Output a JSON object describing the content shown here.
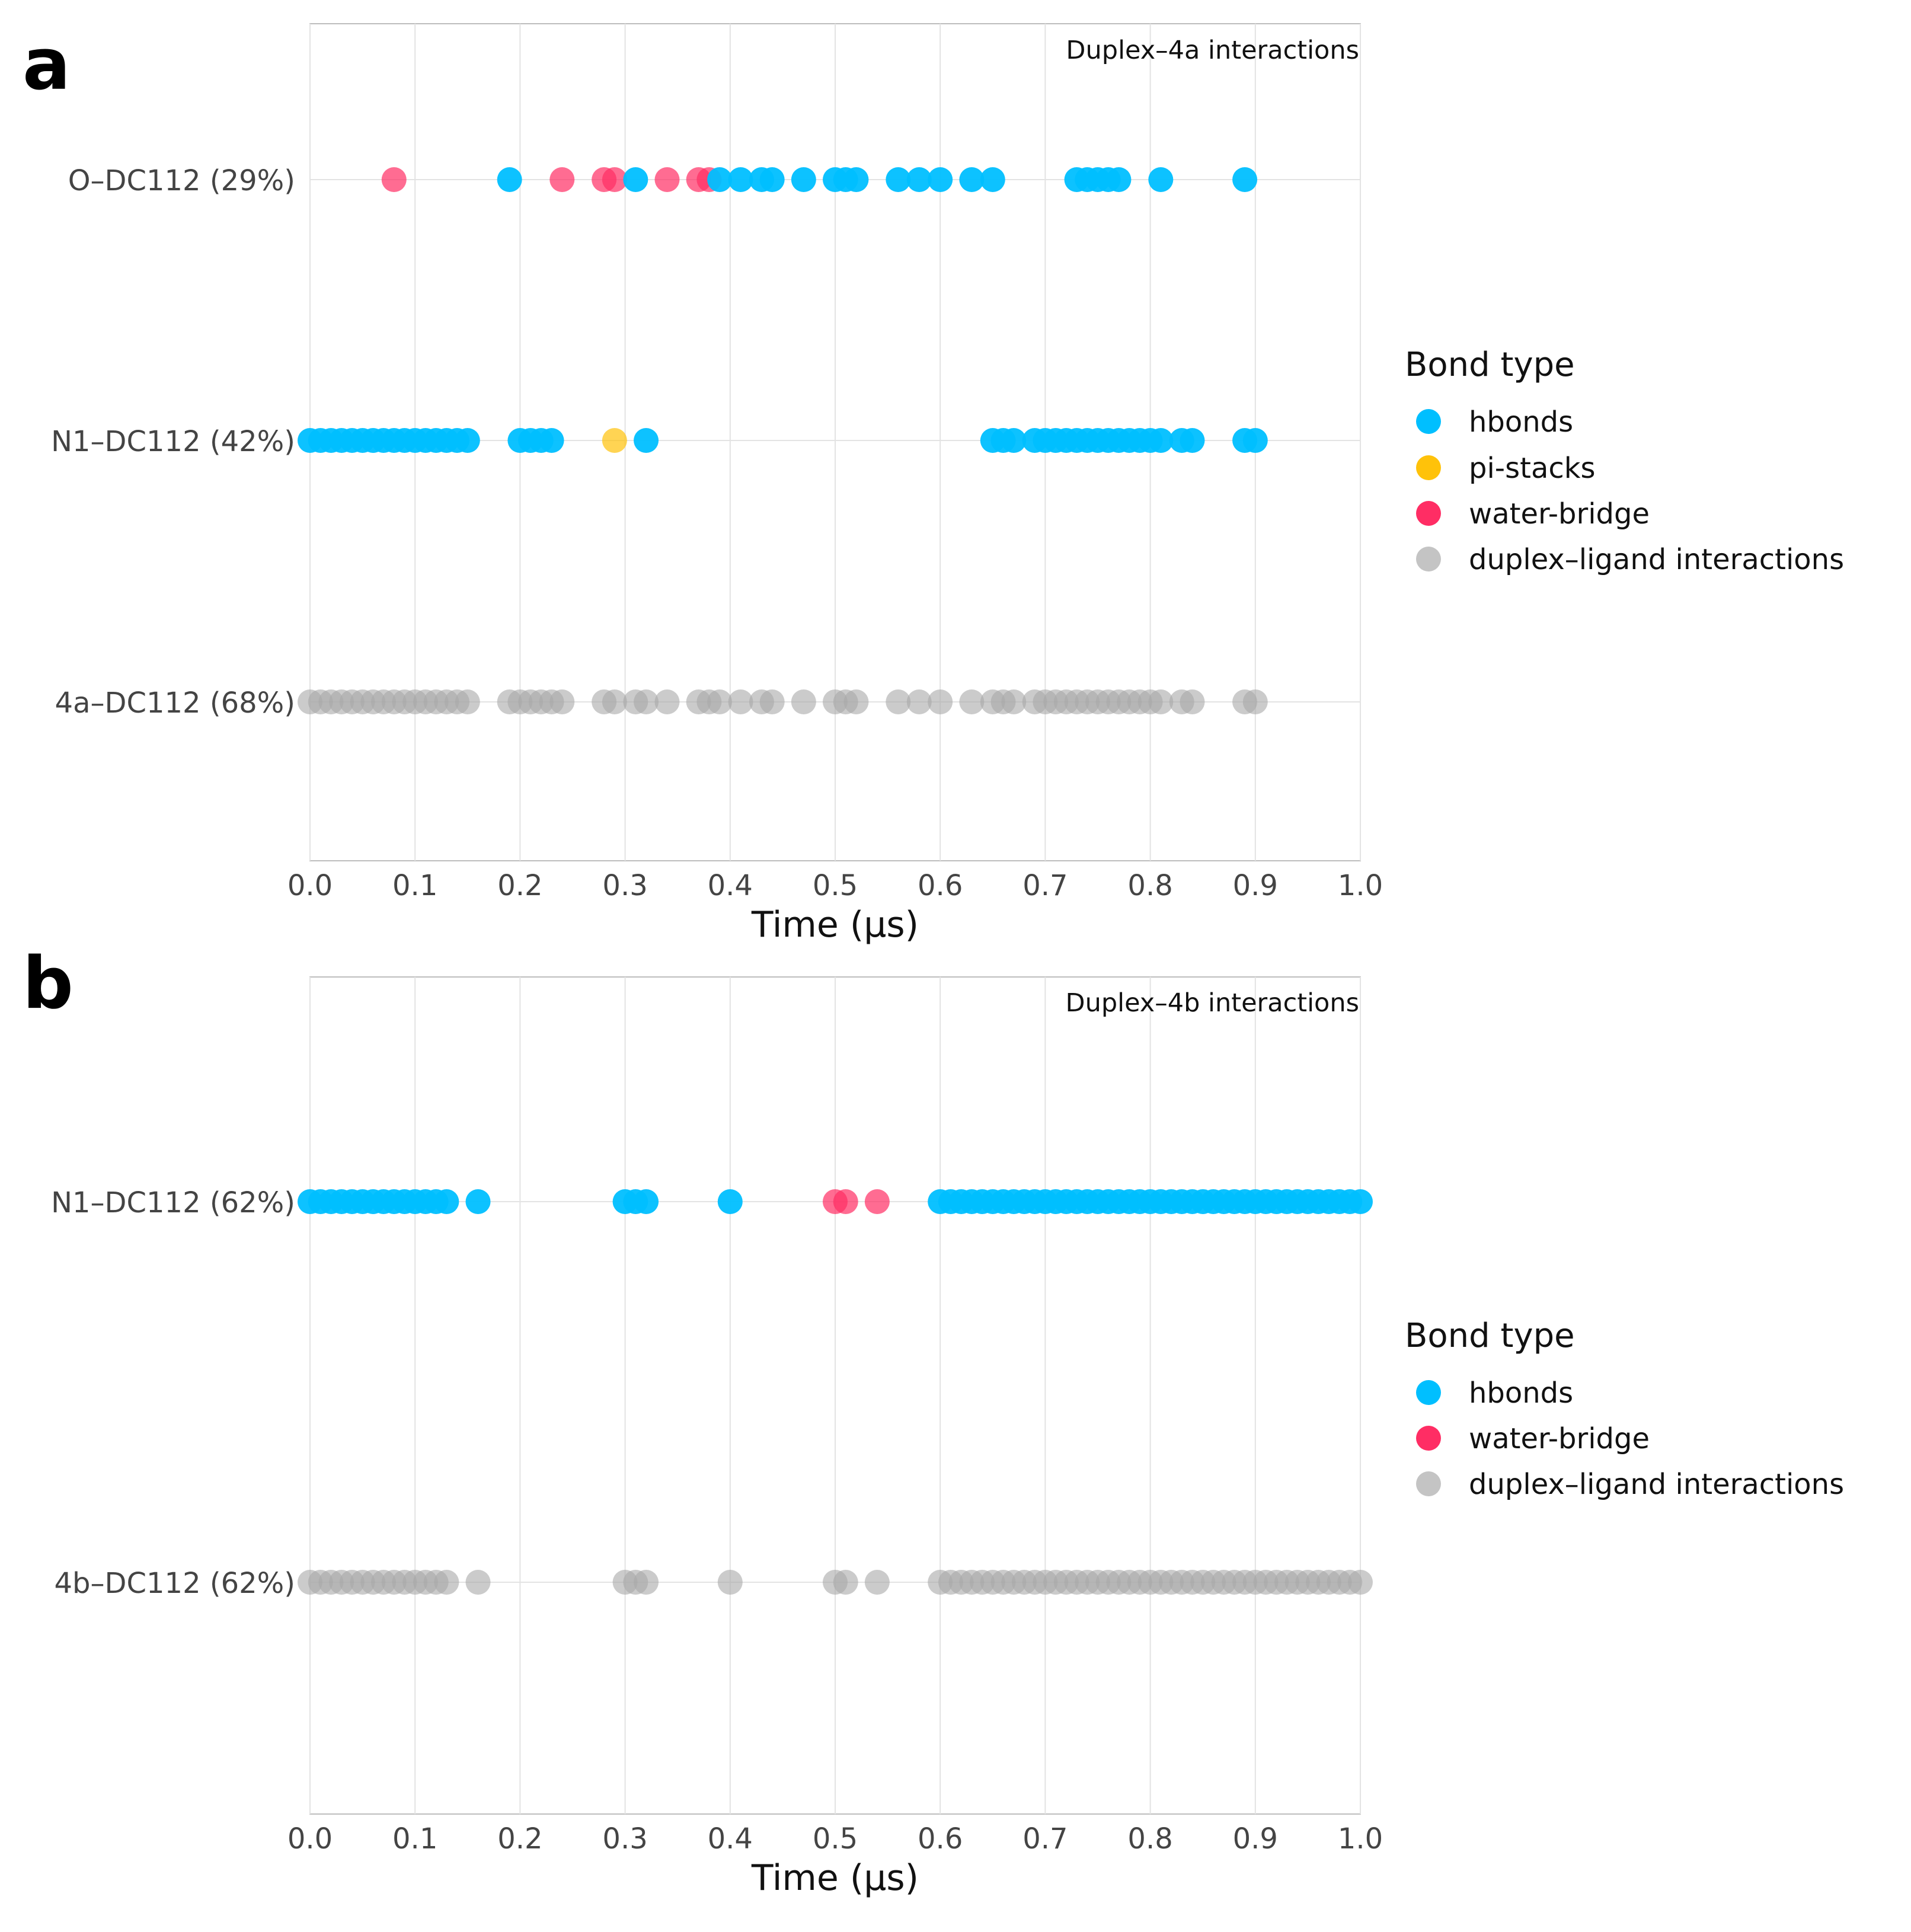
{
  "chart_data": [
    {
      "panel": "a",
      "type": "scatter",
      "title": "Duplex–4a interactions",
      "xlabel": "Time (μs)",
      "xlim": [
        0.0,
        1.0
      ],
      "xticks": [
        "0.0",
        "0.1",
        "0.2",
        "0.3",
        "0.4",
        "0.5",
        "0.6",
        "0.7",
        "0.8",
        "0.9",
        "1.0"
      ],
      "rows": [
        {
          "label": "O–DC112 (29%)",
          "points": {
            "water-bridge": [
              0.08,
              0.24,
              0.28,
              0.29,
              0.34,
              0.37,
              0.38
            ],
            "hbonds": [
              0.19,
              0.31,
              0.39,
              0.41,
              0.43,
              0.44,
              0.47,
              0.5,
              0.51,
              0.52,
              0.56,
              0.58,
              0.6,
              0.63,
              0.65,
              0.73,
              0.74,
              0.75,
              0.76,
              0.77,
              0.81,
              0.89
            ]
          }
        },
        {
          "label": "N1–DC112 (42%)",
          "points": {
            "hbonds": [
              0.0,
              0.01,
              0.02,
              0.03,
              0.04,
              0.05,
              0.06,
              0.07,
              0.08,
              0.09,
              0.1,
              0.11,
              0.12,
              0.13,
              0.14,
              0.15,
              0.2,
              0.21,
              0.22,
              0.23,
              0.32,
              0.65,
              0.66,
              0.67,
              0.69,
              0.7,
              0.71,
              0.72,
              0.73,
              0.74,
              0.75,
              0.76,
              0.77,
              0.78,
              0.79,
              0.8,
              0.81,
              0.83,
              0.84,
              0.89,
              0.9
            ],
            "pi-stacks": [
              0.29
            ]
          }
        },
        {
          "label": "4a–DC112 (68%)",
          "points": {
            "duplex–ligand interactions": [
              0.0,
              0.01,
              0.02,
              0.03,
              0.04,
              0.05,
              0.06,
              0.07,
              0.08,
              0.09,
              0.1,
              0.11,
              0.12,
              0.13,
              0.14,
              0.15,
              0.19,
              0.2,
              0.21,
              0.22,
              0.23,
              0.24,
              0.28,
              0.29,
              0.31,
              0.32,
              0.34,
              0.37,
              0.38,
              0.39,
              0.41,
              0.43,
              0.44,
              0.47,
              0.5,
              0.51,
              0.52,
              0.56,
              0.58,
              0.6,
              0.63,
              0.65,
              0.66,
              0.67,
              0.69,
              0.7,
              0.71,
              0.72,
              0.73,
              0.74,
              0.75,
              0.76,
              0.77,
              0.78,
              0.79,
              0.8,
              0.81,
              0.83,
              0.84,
              0.89,
              0.9
            ]
          }
        }
      ],
      "legend": {
        "title": "Bond type",
        "placement": "right",
        "entries": [
          "hbonds",
          "pi-stacks",
          "water-bridge",
          "duplex–ligand interactions"
        ]
      }
    },
    {
      "panel": "b",
      "type": "scatter",
      "title": "Duplex–4b interactions",
      "xlabel": "Time (μs)",
      "xlim": [
        0.0,
        1.0
      ],
      "xticks": [
        "0.0",
        "0.1",
        "0.2",
        "0.3",
        "0.4",
        "0.5",
        "0.6",
        "0.7",
        "0.8",
        "0.9",
        "1.0"
      ],
      "rows": [
        {
          "label": "N1–DC112 (62%)",
          "points": {
            "hbonds": [
              0.0,
              0.01,
              0.02,
              0.03,
              0.04,
              0.05,
              0.06,
              0.07,
              0.08,
              0.09,
              0.1,
              0.11,
              0.12,
              0.13,
              0.16,
              0.3,
              0.31,
              0.32,
              0.4,
              0.6,
              0.61,
              0.62,
              0.63,
              0.64,
              0.65,
              0.66,
              0.67,
              0.68,
              0.69,
              0.7,
              0.71,
              0.72,
              0.73,
              0.74,
              0.75,
              0.76,
              0.77,
              0.78,
              0.79,
              0.8,
              0.81,
              0.82,
              0.83,
              0.84,
              0.85,
              0.86,
              0.87,
              0.88,
              0.89,
              0.9,
              0.91,
              0.92,
              0.93,
              0.94,
              0.95,
              0.96,
              0.97,
              0.98,
              0.99,
              1.0
            ],
            "water-bridge": [
              0.5,
              0.51,
              0.54
            ]
          }
        },
        {
          "label": "4b–DC112 (62%)",
          "points": {
            "duplex–ligand interactions": [
              0.0,
              0.01,
              0.02,
              0.03,
              0.04,
              0.05,
              0.06,
              0.07,
              0.08,
              0.09,
              0.1,
              0.11,
              0.12,
              0.13,
              0.16,
              0.3,
              0.31,
              0.32,
              0.4,
              0.5,
              0.51,
              0.54,
              0.6,
              0.61,
              0.62,
              0.63,
              0.64,
              0.65,
              0.66,
              0.67,
              0.68,
              0.69,
              0.7,
              0.71,
              0.72,
              0.73,
              0.74,
              0.75,
              0.76,
              0.77,
              0.78,
              0.79,
              0.8,
              0.81,
              0.82,
              0.83,
              0.84,
              0.85,
              0.86,
              0.87,
              0.88,
              0.89,
              0.9,
              0.91,
              0.92,
              0.93,
              0.94,
              0.95,
              0.96,
              0.97,
              0.98,
              0.99,
              1.0
            ]
          }
        }
      ],
      "legend": {
        "title": "Bond type",
        "placement": "right",
        "entries": [
          "hbonds",
          "water-bridge",
          "duplex–ligand interactions"
        ]
      }
    }
  ],
  "colors": {
    "hbonds": "#00BFFF",
    "pi-stacks": "#FFC20A",
    "water-bridge": "#FF2D64",
    "duplex–ligand interactions": "#A9A9A9",
    "grid": "#E3E3E3",
    "frame": "#BDBDBD"
  },
  "series_opacity": {
    "hbonds": 0.95,
    "pi-stacks": 0.7,
    "water-bridge": 0.7,
    "duplex–ligand interactions": 0.6
  }
}
